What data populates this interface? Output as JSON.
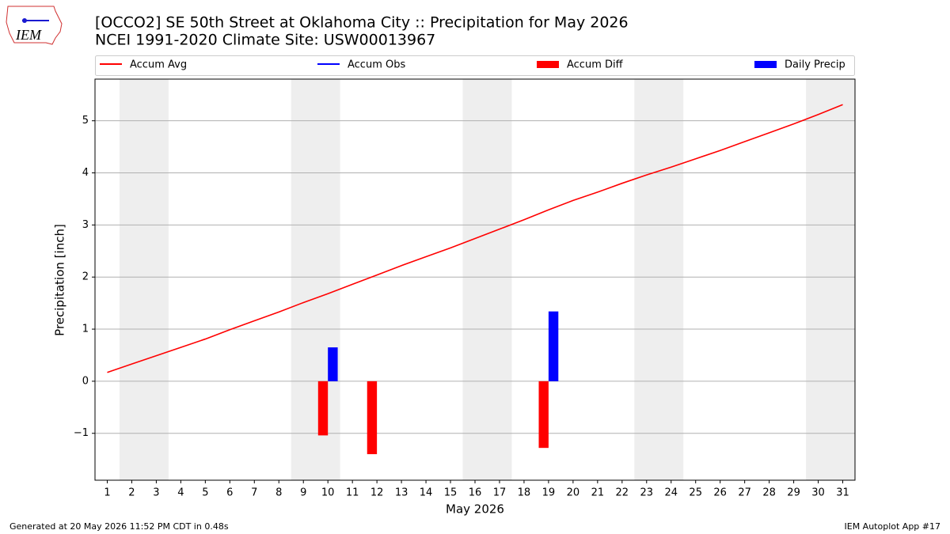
{
  "chart_data": {
    "type": "bar_line",
    "title": "[OCCO2] SE 50th Street at Oklahoma City :: Precipitation for May 2026",
    "subtitle": "NCEI 1991-2020 Climate Site: USW00013967",
    "xlabel": "May 2026",
    "ylabel": "Precipitation [inch]",
    "logo": "IEM",
    "footer_left": "Generated at 20 May 2026 11:52 PM CDT in 0.48s",
    "footer_right": "IEM Autoplot App #17",
    "x": [
      1,
      2,
      3,
      4,
      5,
      6,
      7,
      8,
      9,
      10,
      11,
      12,
      13,
      14,
      15,
      16,
      17,
      18,
      19,
      20,
      21,
      22,
      23,
      24,
      25,
      26,
      27,
      28,
      29,
      30,
      31
    ],
    "series": [
      {
        "name": "Accum Avg",
        "color": "#ff0000",
        "kind": "line",
        "values": [
          0.17,
          0.33,
          0.49,
          0.65,
          0.81,
          0.99,
          1.16,
          1.33,
          1.51,
          1.68,
          1.86,
          2.04,
          2.22,
          2.39,
          2.56,
          2.74,
          2.92,
          3.1,
          3.29,
          3.47,
          3.63,
          3.8,
          3.96,
          4.11,
          4.27,
          4.43,
          4.6,
          4.77,
          4.94,
          5.12,
          5.31
        ]
      },
      {
        "name": "Accum Obs",
        "color": "#0000ff",
        "kind": "line",
        "values": [
          null,
          null,
          null,
          null,
          null,
          null,
          null,
          null,
          null,
          null,
          null,
          null,
          null,
          null,
          null,
          null,
          null,
          null,
          null,
          null,
          null,
          null,
          null,
          null,
          null,
          null,
          null,
          null,
          null,
          null,
          null
        ]
      },
      {
        "name": "Accum Diff",
        "color": "#ff0000",
        "kind": "bar",
        "values": [
          null,
          null,
          null,
          null,
          null,
          null,
          null,
          null,
          null,
          -1.04,
          null,
          -1.4,
          null,
          null,
          null,
          null,
          null,
          null,
          -1.28,
          null,
          null,
          null,
          null,
          null,
          null,
          null,
          null,
          null,
          null,
          null,
          null
        ]
      },
      {
        "name": "Daily Precip",
        "color": "#0000ff",
        "kind": "bar",
        "values": [
          null,
          null,
          null,
          null,
          null,
          null,
          null,
          null,
          null,
          0.65,
          null,
          null,
          null,
          null,
          null,
          null,
          null,
          null,
          1.34,
          null,
          null,
          null,
          null,
          null,
          null,
          null,
          null,
          null,
          null,
          null,
          null
        ]
      }
    ],
    "weekends": [
      [
        2,
        3
      ],
      [
        9,
        10
      ],
      [
        16,
        17
      ],
      [
        23,
        24
      ],
      [
        30,
        31
      ]
    ],
    "xlim": [
      0.5,
      31.5
    ],
    "xticks": [
      1,
      2,
      3,
      4,
      5,
      6,
      7,
      8,
      9,
      10,
      11,
      12,
      13,
      14,
      15,
      16,
      17,
      18,
      19,
      20,
      21,
      22,
      23,
      24,
      25,
      26,
      27,
      28,
      29,
      30,
      31
    ],
    "ylim": [
      -1.9,
      5.8
    ],
    "yticks": [
      {
        "value": -1,
        "label": "−1"
      },
      0,
      1,
      2,
      3,
      4,
      5
    ],
    "grid": true,
    "legend": "top"
  }
}
